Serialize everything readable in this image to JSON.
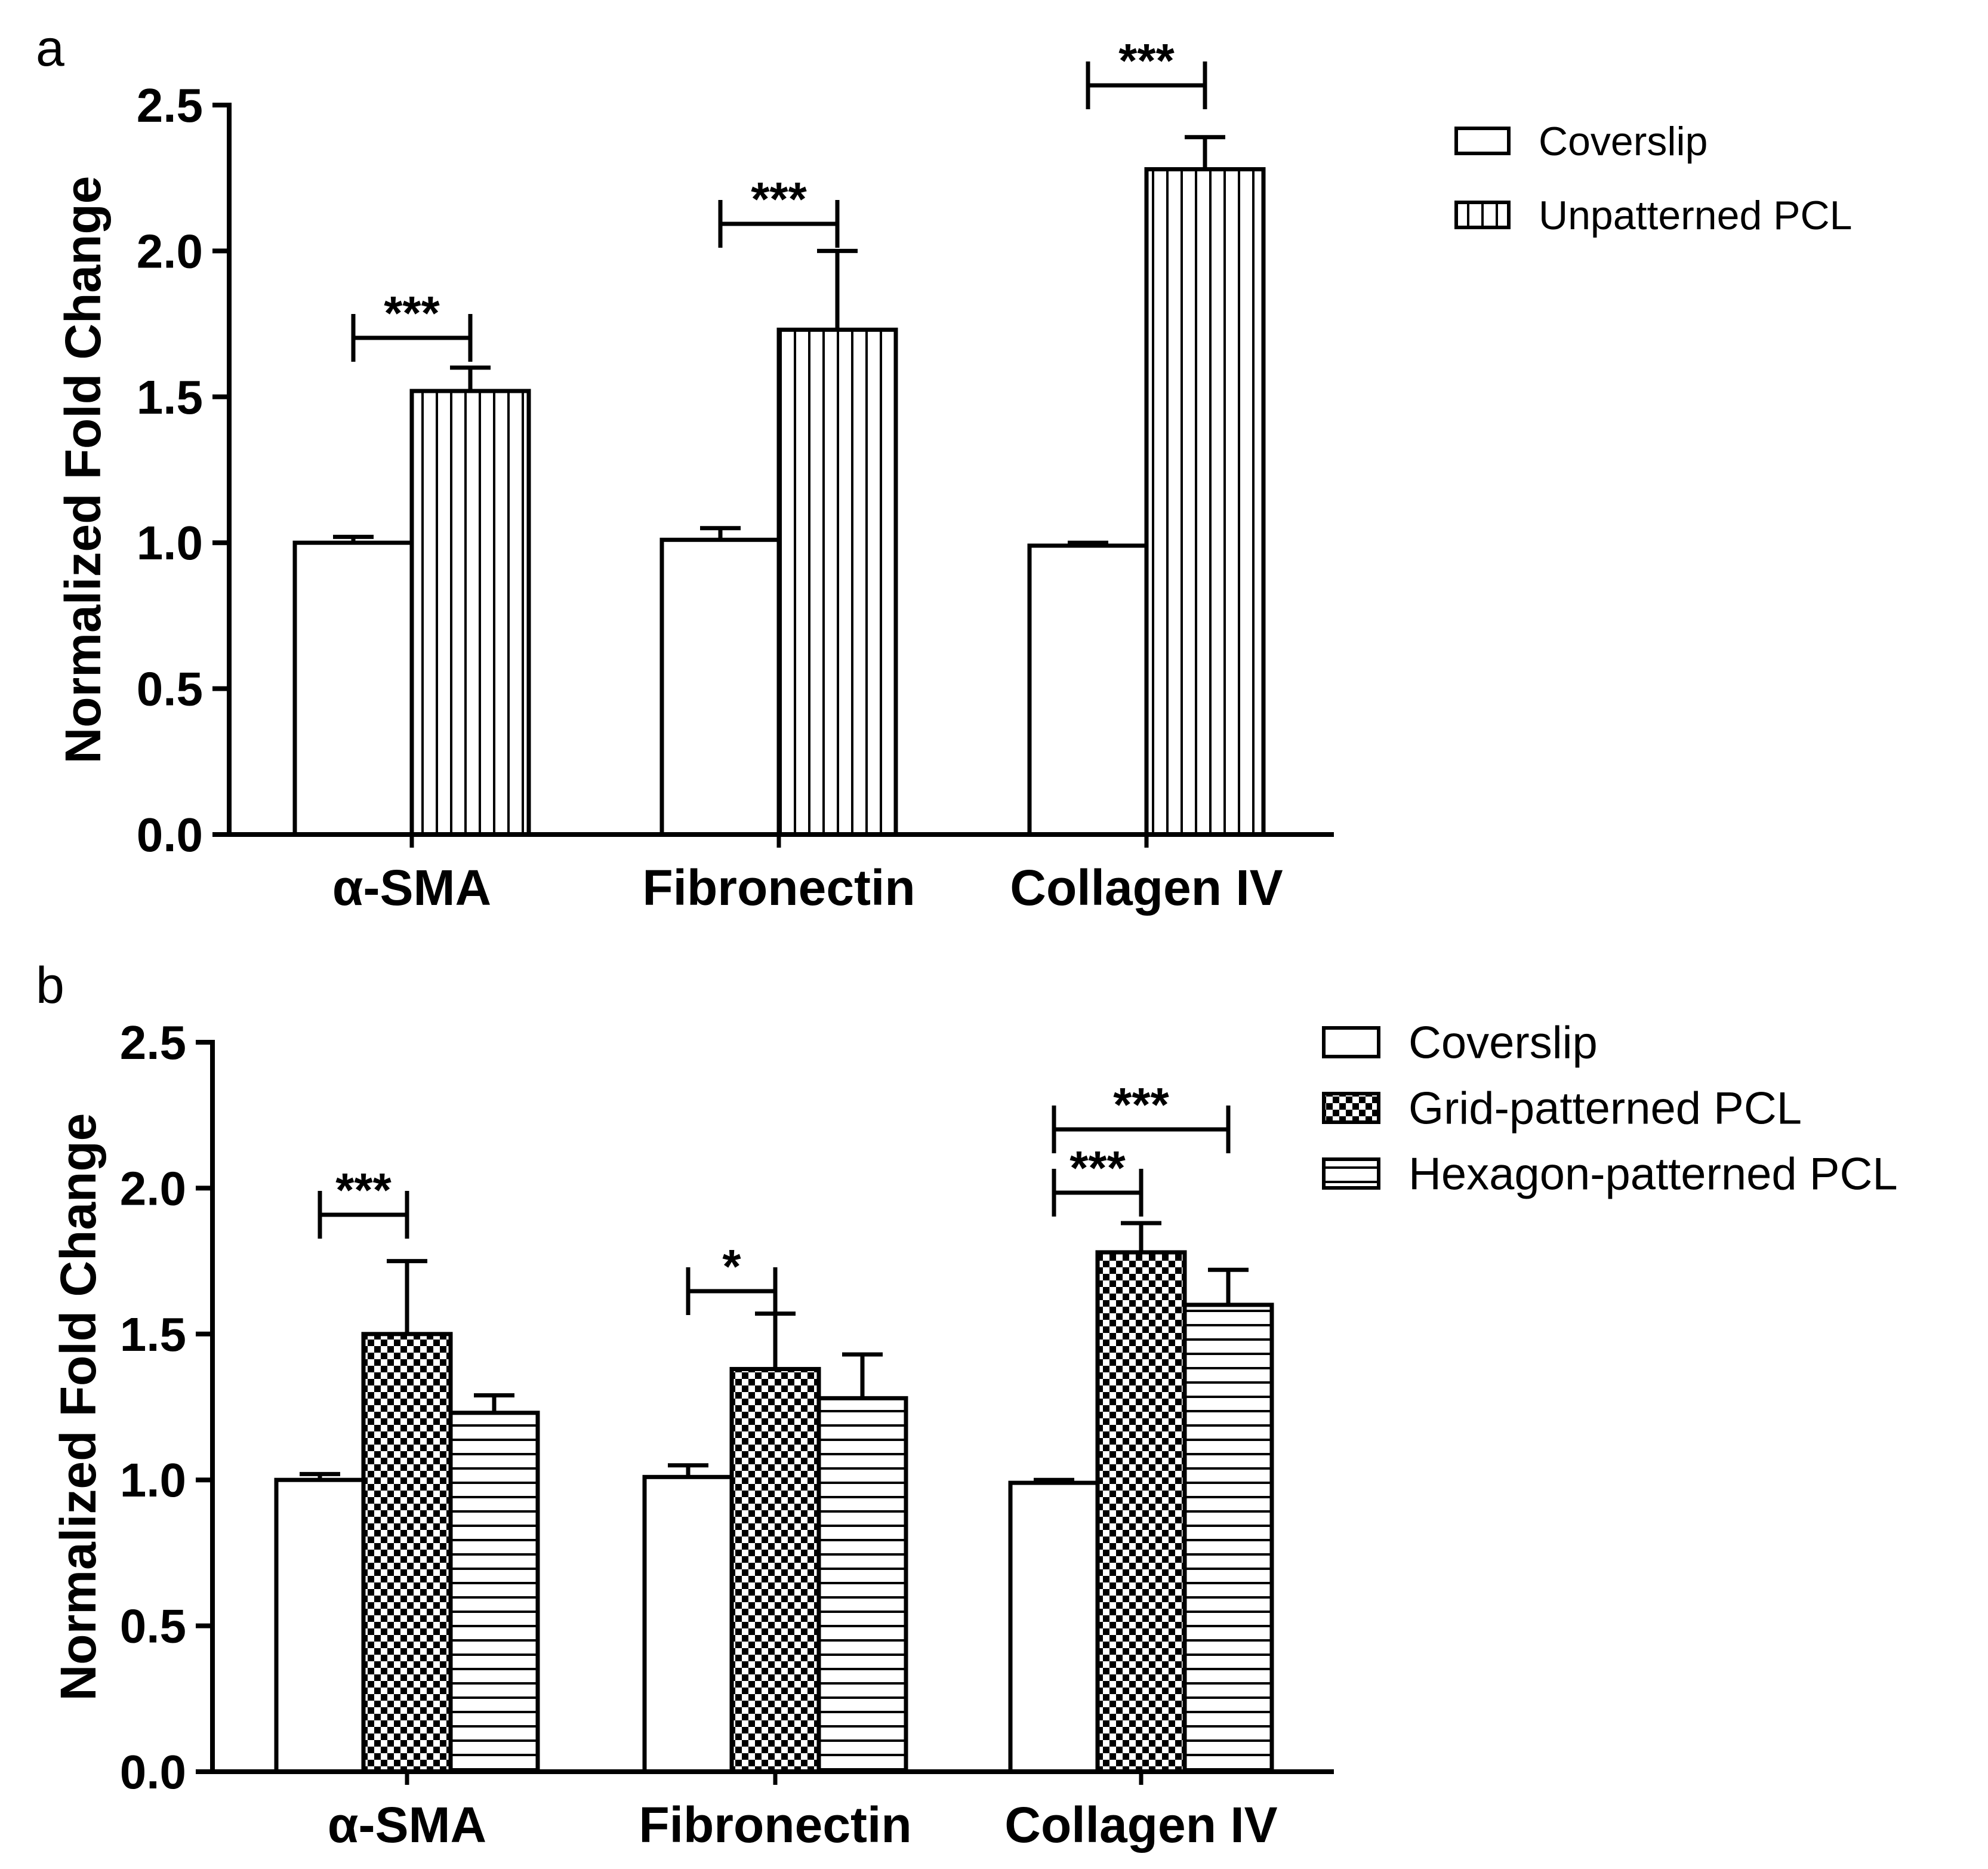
{
  "figure": {
    "panel_labels": [
      "a",
      "b"
    ]
  },
  "chart_data": [
    {
      "type": "bar",
      "panel": "a",
      "title": "",
      "xlabel": "",
      "ylabel": "Normalized Fold Change",
      "ylim": [
        0,
        2.5
      ],
      "yticks": [
        0.0,
        0.5,
        1.0,
        1.5,
        2.0,
        2.5
      ],
      "ytick_labels": [
        "0.0",
        "0.5",
        "1.0",
        "1.5",
        "2.0",
        "2.5"
      ],
      "categories": [
        "α-SMA",
        "Fibronectin",
        "Collagen IV"
      ],
      "series": [
        {
          "name": "Coverslip",
          "pattern": "open",
          "values": [
            1.0,
            1.01,
            0.99
          ],
          "errors": [
            0.02,
            0.04,
            0.01
          ]
        },
        {
          "name": "Unpatterned PCL",
          "pattern": "vertical-lines",
          "values": [
            1.52,
            1.73,
            2.28
          ],
          "errors": [
            0.08,
            0.27,
            0.11
          ]
        }
      ],
      "significance": [
        {
          "category": 0,
          "from_series": 0,
          "to_series": 1,
          "label": "***"
        },
        {
          "category": 1,
          "from_series": 0,
          "to_series": 1,
          "label": "***"
        },
        {
          "category": 2,
          "from_series": 0,
          "to_series": 1,
          "label": "***"
        }
      ],
      "legend_position": "top-right"
    },
    {
      "type": "bar",
      "panel": "b",
      "title": "",
      "xlabel": "",
      "ylabel": "Normalized Fold Change",
      "ylim": [
        0,
        2.5
      ],
      "yticks": [
        0.0,
        0.5,
        1.0,
        1.5,
        2.0,
        2.5
      ],
      "ytick_labels": [
        "0.0",
        "0.5",
        "1.0",
        "1.5",
        "2.0",
        "2.5"
      ],
      "categories": [
        "α-SMA",
        "Fibronectin",
        "Collagen IV"
      ],
      "series": [
        {
          "name": "Coverslip",
          "pattern": "open",
          "values": [
            1.0,
            1.01,
            0.99
          ],
          "errors": [
            0.02,
            0.04,
            0.01
          ]
        },
        {
          "name": "Grid-patterned PCL",
          "pattern": "checkerboard",
          "values": [
            1.5,
            1.38,
            1.78
          ],
          "errors": [
            0.25,
            0.19,
            0.1
          ]
        },
        {
          "name": "Hexagon-patterned PCL",
          "pattern": "horizontal-lines",
          "values": [
            1.23,
            1.28,
            1.6
          ],
          "errors": [
            0.06,
            0.15,
            0.12
          ]
        }
      ],
      "significance": [
        {
          "category": 0,
          "from_series": 0,
          "to_series": 1,
          "label": "***"
        },
        {
          "category": 1,
          "from_series": 0,
          "to_series": 1,
          "label": "*"
        },
        {
          "category": 2,
          "from_series": 0,
          "to_series": 1,
          "label": "***"
        },
        {
          "category": 2,
          "from_series": 0,
          "to_series": 2,
          "label": "***"
        }
      ],
      "legend_position": "top-right"
    }
  ]
}
